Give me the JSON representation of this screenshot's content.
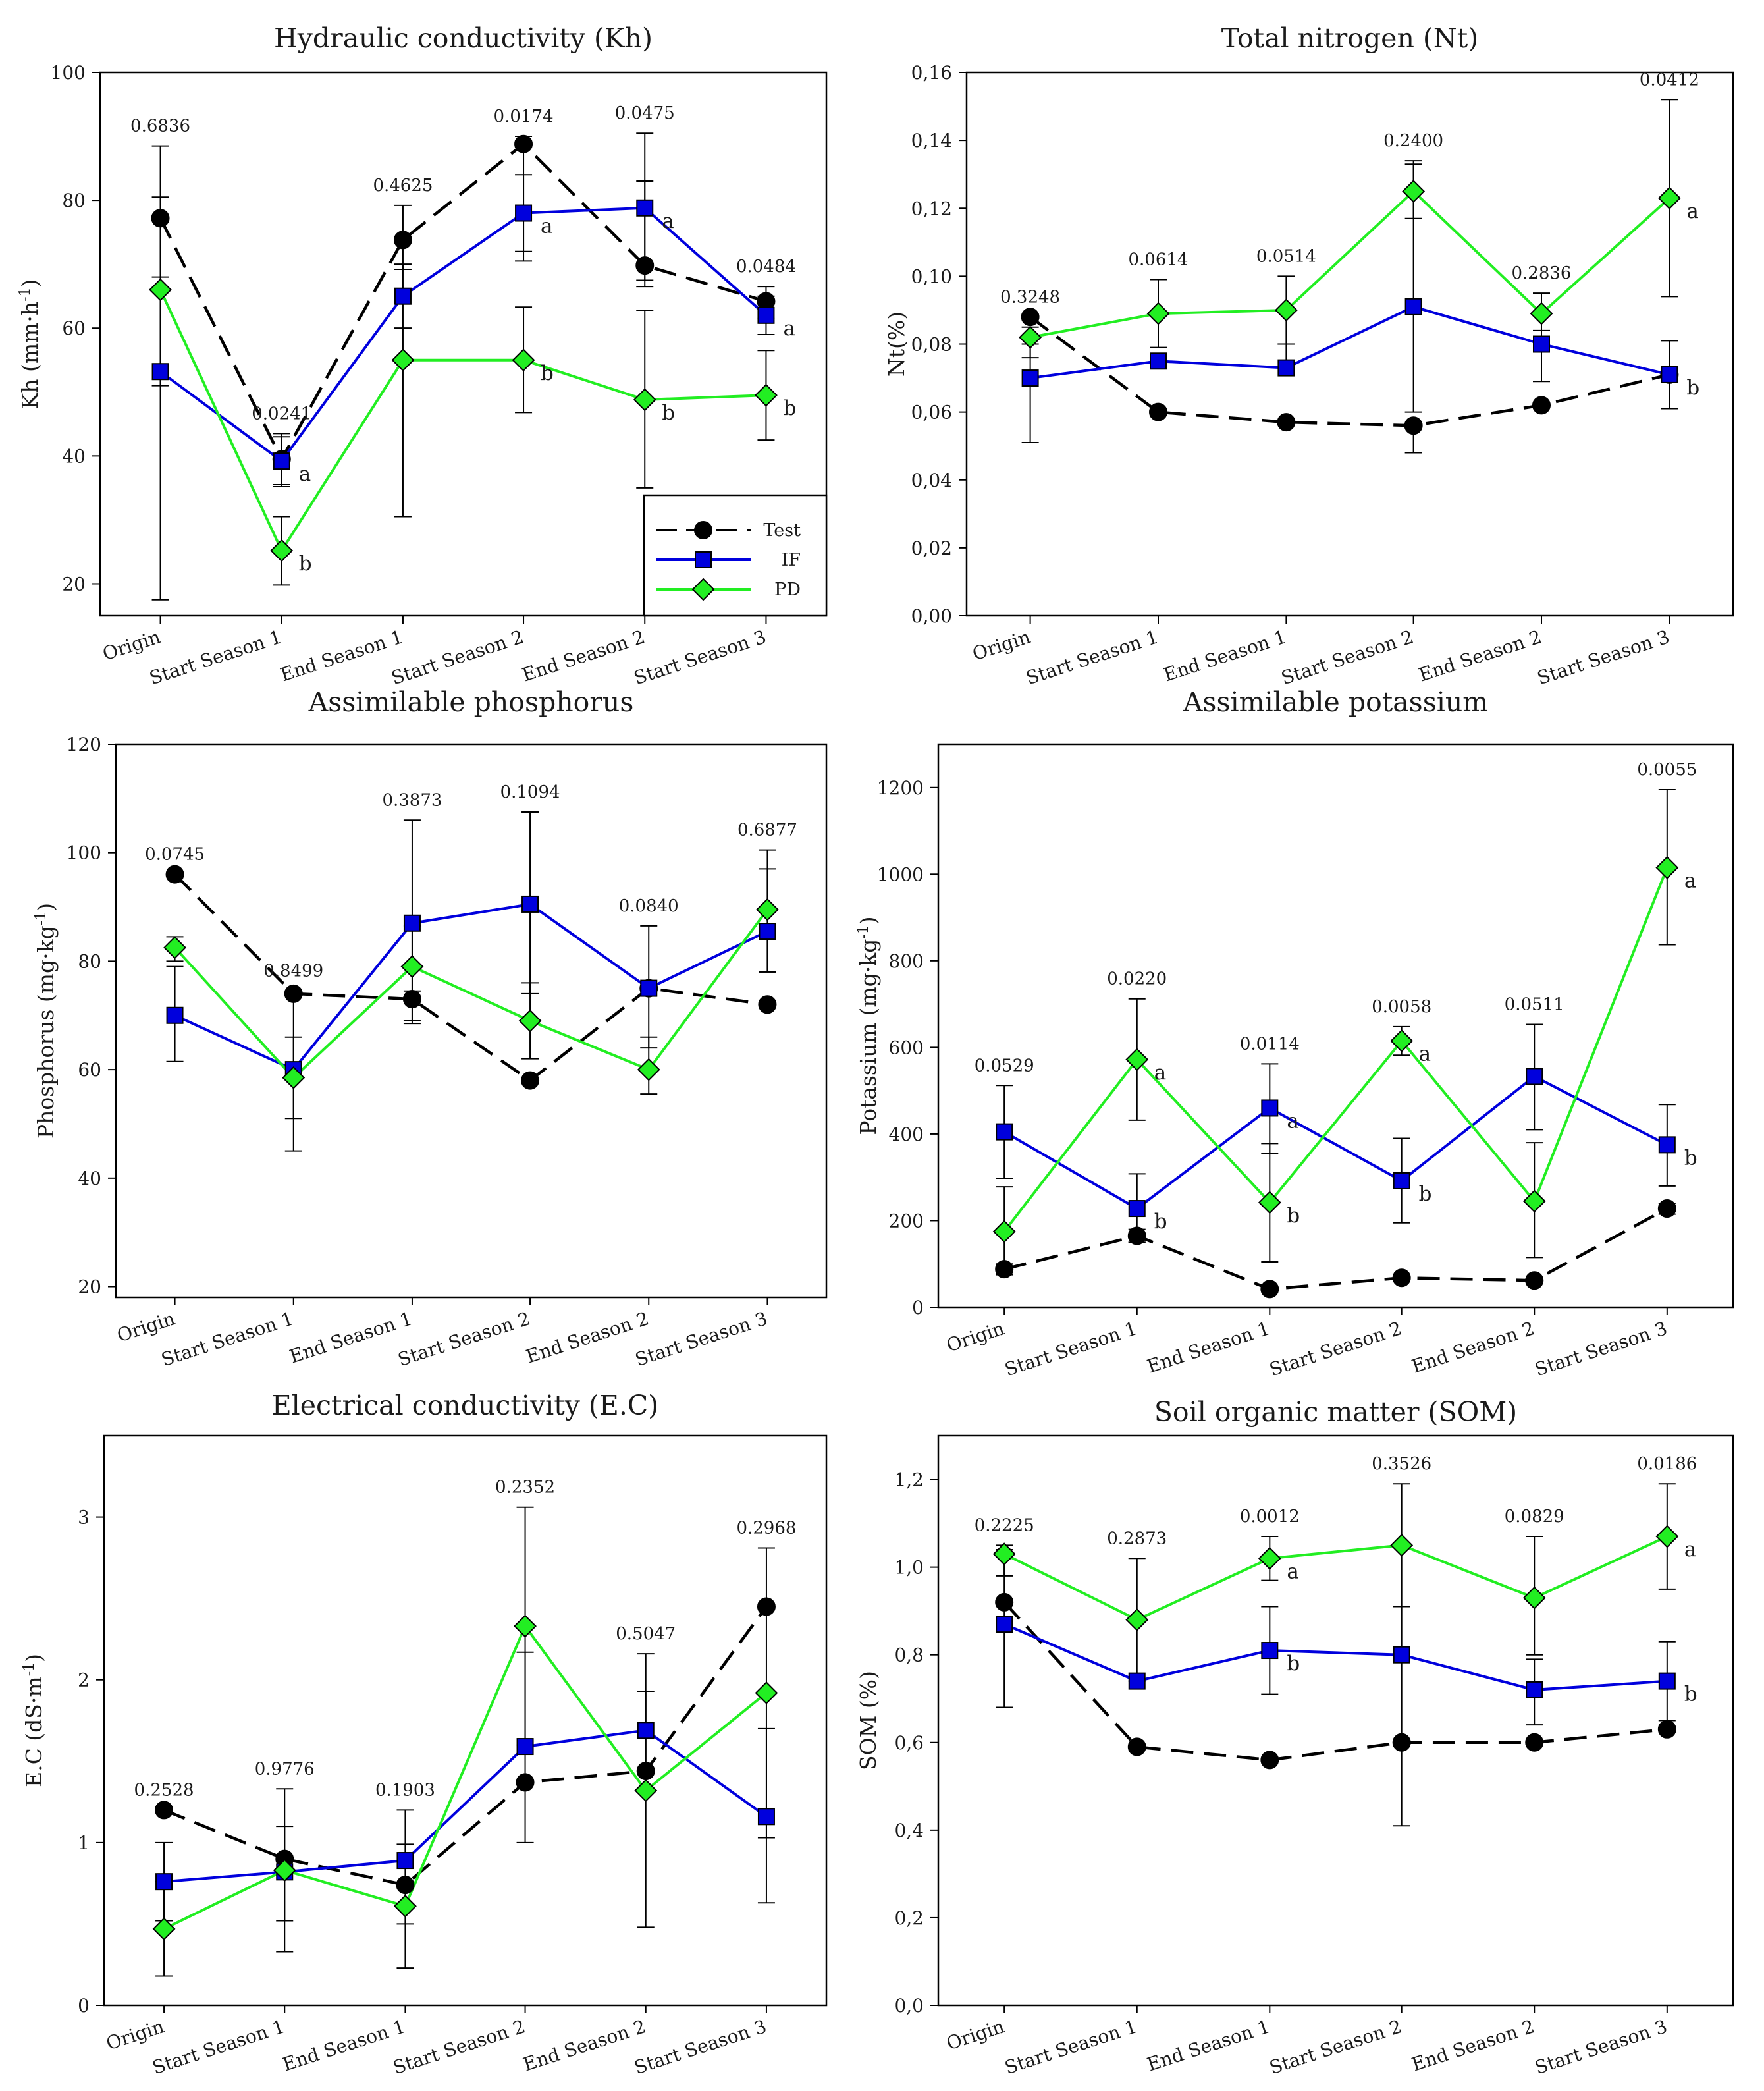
{
  "legend": [
    {
      "name": "Test",
      "color": "#000000",
      "marker": "circle",
      "dash": true
    },
    {
      "name": "IF",
      "color": "#0000dd",
      "marker": "square",
      "dash": false
    },
    {
      "name": "PD",
      "color": "#22ee22",
      "marker": "diamond",
      "dash": false
    }
  ],
  "chart_data": [
    {
      "type": "line",
      "title": "Hydraulic conductivity (Kh)",
      "ylabel": "Kh (mm·h-1)",
      "ylabel_base": "Kh (mm·h",
      "ylabel_sup": "-1",
      "ylabel_end": ")",
      "categories": [
        "Origin",
        "Start Season 1",
        "End Season 1",
        "Start Season 2",
        "End Season 2",
        "Start Season 3"
      ],
      "ylim": [
        15,
        100
      ],
      "yticks": [
        20,
        40,
        60,
        80,
        100
      ],
      "ytick_labels": [
        "20",
        "40",
        "60",
        "80",
        "100"
      ],
      "legend_position": "bottom-right",
      "series": [
        {
          "name": "Test",
          "values": [
            77.2,
            39.5,
            73.8,
            88.8,
            69.8,
            64.2
          ],
          "err_low": [
            17.5,
            35.5,
            69.2,
            70.5,
            66.5,
            61.5
          ],
          "err_high": [
            88.5,
            43.5,
            79.2,
            90.0,
            90.5,
            66.5
          ]
        },
        {
          "name": "IF",
          "values": [
            53.2,
            39.2,
            65.0,
            78.0,
            78.8,
            62.0
          ],
          "err_low": [
            51.0,
            35.2,
            60.0,
            72.0,
            67.5,
            59.0
          ],
          "err_high": [
            80.5,
            43.0,
            70.0,
            84.0,
            83.0,
            65.0
          ]
        },
        {
          "name": "PD",
          "values": [
            66.0,
            25.2,
            55.0,
            55.0,
            48.8,
            49.5
          ],
          "err_low": [
            52.0,
            19.8,
            30.5,
            46.8,
            35.0,
            42.5
          ],
          "err_high": [
            68.0,
            30.5,
            60.0,
            63.3,
            62.8,
            56.5
          ]
        }
      ],
      "p_values": [
        "0.6836",
        "0.0241",
        "0.4625",
        "0.0174",
        "0.0475",
        "0.0484"
      ],
      "letters": [
        {
          "series": "IF",
          "index": 1,
          "text": "a"
        },
        {
          "series": "PD",
          "index": 1,
          "text": "b"
        },
        {
          "series": "IF",
          "index": 3,
          "text": "a"
        },
        {
          "series": "PD",
          "index": 3,
          "text": "b"
        },
        {
          "series": "IF",
          "index": 4,
          "text": "a"
        },
        {
          "series": "PD",
          "index": 4,
          "text": "b"
        },
        {
          "series": "IF",
          "index": 5,
          "text": "a"
        },
        {
          "series": "PD",
          "index": 5,
          "text": "b"
        }
      ]
    },
    {
      "type": "line",
      "title": "Total nitrogen (Nt)",
      "ylabel": "Nt(%)",
      "ylabel_base": "Nt(%)",
      "ylabel_sup": "",
      "ylabel_end": "",
      "categories": [
        "Origin",
        "Start Season 1",
        "End Season 1",
        "Start Season 2",
        "End Season 2",
        "Start Season 3"
      ],
      "ylim": [
        0,
        0.16
      ],
      "yticks": [
        0,
        0.02,
        0.04,
        0.06,
        0.08,
        0.1,
        0.12,
        0.14,
        0.16
      ],
      "ytick_labels": [
        "0,00",
        "0,02",
        "0,04",
        "0,06",
        "0,08",
        "0,10",
        "0,12",
        "0,14",
        "0,16"
      ],
      "series": [
        {
          "name": "Test",
          "values": [
            0.088,
            0.06,
            0.057,
            0.056,
            0.062,
            0.071
          ],
          "err_low": [
            0.088,
            0.06,
            0.057,
            0.048,
            0.062,
            0.061
          ],
          "err_high": [
            0.088,
            0.06,
            0.057,
            0.056,
            0.062,
            0.081
          ]
        },
        {
          "name": "IF",
          "values": [
            0.07,
            0.075,
            0.073,
            0.091,
            0.08,
            0.071
          ],
          "err_low": [
            0.051,
            0.075,
            0.073,
            0.06,
            0.069,
            0.071
          ],
          "err_high": [
            0.08,
            0.076,
            0.08,
            0.134,
            0.084,
            0.071
          ]
        },
        {
          "name": "PD",
          "values": [
            0.082,
            0.089,
            0.09,
            0.125,
            0.089,
            0.123
          ],
          "err_low": [
            0.076,
            0.079,
            0.08,
            0.117,
            0.082,
            0.094
          ],
          "err_high": [
            0.085,
            0.099,
            0.1,
            0.133,
            0.095,
            0.152
          ]
        }
      ],
      "p_values": [
        "0.3248",
        "0.0614",
        "0.0514",
        "0.2400",
        "0.2836",
        "0.0412"
      ],
      "letters": [
        {
          "series": "PD",
          "index": 5,
          "text": "a"
        },
        {
          "series": "Test",
          "index": 5,
          "text": "b"
        }
      ]
    },
    {
      "type": "line",
      "title": "Assimilable phosphorus",
      "ylabel": "Phosphorus (mg·kg-1)",
      "ylabel_base": "Phosphorus (mg·kg",
      "ylabel_sup": "-1",
      "ylabel_end": ")",
      "categories": [
        "Origin",
        "Start Season 1",
        "End Season 1",
        "Start Season 2",
        "End Season 2",
        "Start Season 3"
      ],
      "ylim": [
        18,
        120
      ],
      "yticks": [
        20,
        40,
        60,
        80,
        100,
        120
      ],
      "ytick_labels": [
        "20",
        "40",
        "60",
        "80",
        "100",
        "120"
      ],
      "series": [
        {
          "name": "Test",
          "values": [
            96.0,
            74.0,
            73.0,
            58.0,
            75.0,
            72.0
          ],
          "err_low": [
            96.0,
            74.0,
            68.5,
            58.0,
            75.0,
            72.0
          ],
          "err_high": [
            96.0,
            74.0,
            73.0,
            58.0,
            75.0,
            72.0
          ]
        },
        {
          "name": "IF",
          "values": [
            70.0,
            60.0,
            87.0,
            90.5,
            75.0,
            85.5
          ],
          "err_low": [
            61.5,
            45.0,
            69.0,
            74.0,
            64.0,
            78.0
          ],
          "err_high": [
            79.0,
            74.5,
            106.0,
            107.5,
            86.5,
            97.0
          ]
        },
        {
          "name": "PD",
          "values": [
            82.5,
            58.5,
            79.0,
            69.0,
            60.0,
            89.5
          ],
          "err_low": [
            80.0,
            51.0,
            74.5,
            62.0,
            55.5,
            78.0
          ],
          "err_high": [
            84.5,
            66.0,
            86.5,
            76.0,
            66.0,
            100.5
          ]
        }
      ],
      "p_values": [
        "0.0745",
        "0.8499",
        "0.3873",
        "0.1094",
        "0.0840",
        "0.6877"
      ],
      "letters": []
    },
    {
      "type": "line",
      "title": "Assimilable potassium",
      "ylabel": "Potassium (mg·kg-1)",
      "ylabel_base": "Potassium (mg·kg",
      "ylabel_sup": "-1",
      "ylabel_end": ")",
      "categories": [
        "Origin",
        "Start Season 1",
        "End Season 1",
        "Start Season 2",
        "End Season 2",
        "Start Season 3"
      ],
      "ylim": [
        0,
        1300
      ],
      "yticks": [
        0,
        200,
        400,
        600,
        800,
        1000,
        1200
      ],
      "ytick_labels": [
        "0",
        "200",
        "400",
        "600",
        "800",
        "1000",
        "1200"
      ],
      "series": [
        {
          "name": "Test",
          "values": [
            88,
            165,
            42,
            68,
            62,
            228
          ],
          "err_low": [
            75,
            150,
            38,
            60,
            58,
            215
          ],
          "err_high": [
            100,
            180,
            48,
            75,
            68,
            240
          ]
        },
        {
          "name": "IF",
          "values": [
            405,
            228,
            460,
            292,
            533,
            375
          ],
          "err_low": [
            298,
            150,
            355,
            195,
            410,
            280
          ],
          "err_high": [
            512,
            308,
            562,
            390,
            653,
            468
          ]
        },
        {
          "name": "PD",
          "values": [
            175,
            572,
            242,
            615,
            245,
            1015
          ],
          "err_low": [
            80,
            432,
            105,
            582,
            115,
            837
          ],
          "err_high": [
            278,
            712,
            378,
            648,
            380,
            1195
          ]
        }
      ],
      "p_values": [
        "0.0529",
        "0.0220",
        "0.0114",
        "0.0058",
        "0.0511",
        "0.0055"
      ],
      "letters": [
        {
          "series": "PD",
          "index": 1,
          "text": "a"
        },
        {
          "series": "IF",
          "index": 1,
          "text": "b"
        },
        {
          "series": "IF",
          "index": 2,
          "text": "a"
        },
        {
          "series": "PD",
          "index": 2,
          "text": "b"
        },
        {
          "series": "PD",
          "index": 3,
          "text": "a"
        },
        {
          "series": "IF",
          "index": 3,
          "text": "b"
        },
        {
          "series": "PD",
          "index": 5,
          "text": "a"
        },
        {
          "series": "IF",
          "index": 5,
          "text": "b"
        }
      ]
    },
    {
      "type": "line",
      "title": "Electrical conductivity (E.C)",
      "ylabel": "E.C (dS·m-1)",
      "ylabel_base": "E.C (dS·m",
      "ylabel_sup": "-1",
      "ylabel_end": ")",
      "categories": [
        "Origin",
        "Start Season 1",
        "End Season 1",
        "Start Season 2",
        "End Season 2",
        "Start Season 3"
      ],
      "ylim": [
        0,
        3.5
      ],
      "yticks": [
        0,
        1,
        2,
        3
      ],
      "ytick_labels": [
        "0",
        "1",
        "2",
        "3"
      ],
      "series": [
        {
          "name": "Test",
          "values": [
            1.2,
            0.9,
            0.74,
            1.37,
            1.44,
            2.45
          ],
          "err_low": [
            1.2,
            0.9,
            0.74,
            1.37,
            1.44,
            2.45
          ],
          "err_high": [
            1.2,
            0.9,
            0.74,
            1.37,
            1.44,
            2.45
          ]
        },
        {
          "name": "IF",
          "values": [
            0.76,
            0.82,
            0.89,
            1.59,
            1.69,
            1.16
          ],
          "err_low": [
            0.52,
            0.52,
            0.5,
            1.0,
            1.45,
            1.03
          ],
          "err_high": [
            1.0,
            1.1,
            1.2,
            2.17,
            1.93,
            1.7
          ]
        },
        {
          "name": "PD",
          "values": [
            0.47,
            0.83,
            0.61,
            2.33,
            1.32,
            1.92
          ],
          "err_low": [
            0.18,
            0.33,
            0.23,
            1.6,
            0.48,
            0.63
          ],
          "err_high": [
            0.76,
            1.33,
            0.99,
            3.06,
            2.16,
            2.81
          ]
        }
      ],
      "p_values": [
        "0.2528",
        "0.9776",
        "0.1903",
        "0.2352",
        "0.5047",
        "0.2968"
      ],
      "letters": []
    },
    {
      "type": "line",
      "title": "Soil organic matter (SOM)",
      "ylabel": "SOM (%)",
      "ylabel_base": "SOM (%)",
      "ylabel_sup": "",
      "ylabel_end": "",
      "categories": [
        "Origin",
        "Start Season 1",
        "End Season 1",
        "Start Season 2",
        "End Season 2",
        "Start Season 3"
      ],
      "ylim": [
        0,
        1.3
      ],
      "yticks": [
        0,
        0.2,
        0.4,
        0.6,
        0.8,
        1.0,
        1.2
      ],
      "ytick_labels": [
        "0,0",
        "0,2",
        "0,4",
        "0,6",
        "0,8",
        "1,0",
        "1,2"
      ],
      "series": [
        {
          "name": "Test",
          "values": [
            0.92,
            0.59,
            0.56,
            0.6,
            0.6,
            0.63
          ],
          "err_low": [
            0.92,
            0.59,
            0.56,
            0.6,
            0.6,
            0.63
          ],
          "err_high": [
            0.92,
            0.59,
            0.56,
            0.6,
            0.6,
            0.63
          ]
        },
        {
          "name": "IF",
          "values": [
            0.87,
            0.74,
            0.81,
            0.8,
            0.72,
            0.74
          ],
          "err_low": [
            0.68,
            0.74,
            0.71,
            0.41,
            0.64,
            0.65
          ],
          "err_high": [
            1.05,
            0.74,
            0.91,
            0.91,
            0.79,
            0.83
          ]
        },
        {
          "name": "PD",
          "values": [
            1.03,
            0.88,
            1.02,
            1.05,
            0.93,
            1.07
          ],
          "err_low": [
            0.98,
            0.74,
            0.97,
            0.91,
            0.8,
            0.95
          ],
          "err_high": [
            1.04,
            1.02,
            1.07,
            1.19,
            1.07,
            1.19
          ]
        }
      ],
      "p_values": [
        "0.2225",
        "0.2873",
        "0.0012",
        "0.3526",
        "0.0829",
        "0.0186"
      ],
      "letters": [
        {
          "series": "PD",
          "index": 2,
          "text": "a"
        },
        {
          "series": "IF",
          "index": 2,
          "text": "b"
        },
        {
          "series": "PD",
          "index": 5,
          "text": "a"
        },
        {
          "series": "IF",
          "index": 5,
          "text": "b"
        }
      ]
    }
  ]
}
